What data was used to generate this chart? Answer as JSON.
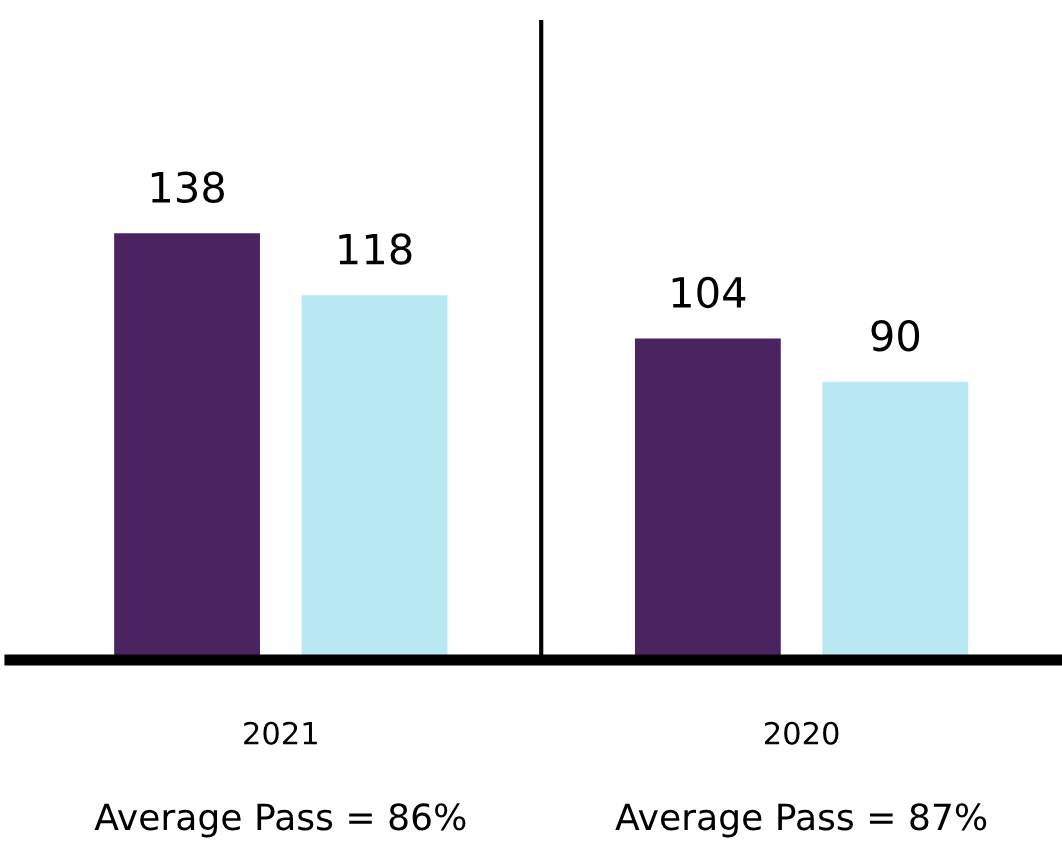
{
  "chart_data": {
    "type": "bar",
    "categories": [
      "2021",
      "2020"
    ],
    "series": [
      {
        "color": "#4b2360",
        "values": [
          138,
          104
        ]
      },
      {
        "color": "#b8e9f2",
        "values": [
          118,
          90
        ]
      }
    ],
    "data_labels": true,
    "annotations": [
      "Average Pass = 86%",
      "Average Pass = 87%"
    ],
    "grid": false
  }
}
